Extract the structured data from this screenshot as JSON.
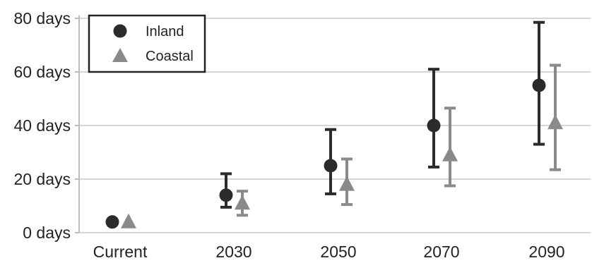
{
  "chart_data": {
    "type": "scatter",
    "categories": [
      "Current",
      "2030",
      "2050",
      "2070",
      "2090"
    ],
    "y_tick_labels": [
      "0 days",
      "20 days",
      "40 days",
      "60 days",
      "80 days"
    ],
    "y_ticks": [
      0,
      20,
      40,
      60,
      80
    ],
    "ylim": [
      0,
      80
    ],
    "grid": true,
    "legend_position": "top-left",
    "series": [
      {
        "name": "Inland",
        "marker": "circle",
        "color": "#2b2b2b",
        "values": [
          4,
          14,
          25,
          40,
          55
        ],
        "lower": [
          null,
          9.5,
          14.5,
          24.5,
          33
        ],
        "upper": [
          null,
          22,
          38.5,
          61,
          78.5
        ]
      },
      {
        "name": "Coastal",
        "marker": "triangle",
        "color": "#8a8a8a",
        "values": [
          4,
          11,
          18,
          29,
          41
        ],
        "lower": [
          null,
          6.5,
          10.5,
          17.5,
          23.5
        ],
        "upper": [
          null,
          15.5,
          27.5,
          46.5,
          62.5
        ]
      }
    ]
  }
}
